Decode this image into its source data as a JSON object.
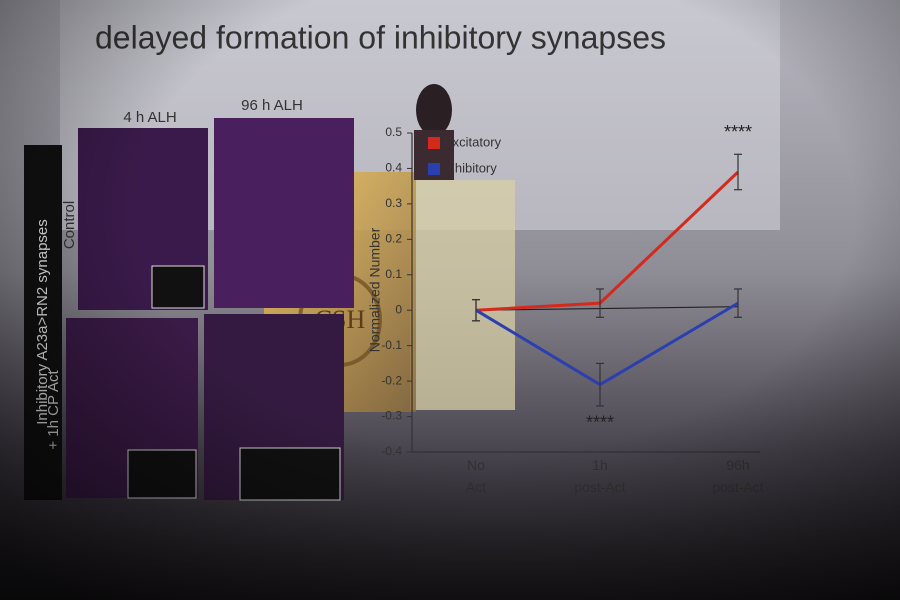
{
  "slide": {
    "title": "delayed formation of inhibitory synapses",
    "panel_columns": [
      "4 h ALH",
      "96 h ALH"
    ],
    "panel_rows": [
      "Control",
      "+ 1h CP Act"
    ],
    "side_label": "Inhibitory A23a>RN2 synapses",
    "podium_logo": "CSH"
  },
  "chart_data": {
    "type": "line",
    "ylabel": "Normalized Number",
    "categories": [
      "No Act",
      "1h post-Act",
      "96h post-Act"
    ],
    "series": [
      {
        "name": "Excitatory",
        "color": "#d42a1e",
        "values": [
          0,
          0.02,
          0.39
        ],
        "errors": [
          0.03,
          0.04,
          0.05
        ]
      },
      {
        "name": "Inhibitory",
        "color": "#2c3fb0",
        "values": [
          0,
          -0.21,
          0.02
        ],
        "errors": [
          0.03,
          0.06,
          0.04
        ]
      }
    ],
    "annotations": [
      {
        "text": "****",
        "category": 2,
        "value": 0.5
      },
      {
        "text": "****",
        "category": 1,
        "value": -0.32
      }
    ],
    "ylim": [
      -0.4,
      0.5
    ],
    "yticks": [
      -0.4,
      -0.3,
      -0.2,
      -0.1,
      0,
      0.1,
      0.2,
      0.3,
      0.4,
      0.5
    ]
  }
}
